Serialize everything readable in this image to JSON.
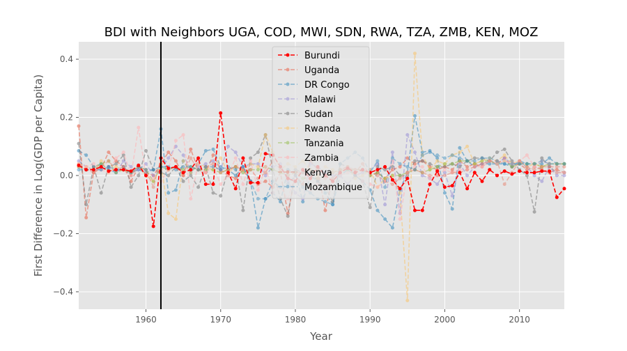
{
  "chart_data": {
    "type": "line",
    "title": "BDI with Neighbors UGA, COD, MWI, SDN, RWA, TZA, ZMB, KEN, MOZ",
    "xlabel": "Year",
    "ylabel": "First Difference in Log(GDP per Capita)",
    "xlim": [
      1951,
      2016
    ],
    "ylim": [
      -0.46,
      0.46
    ],
    "xticks": [
      1960,
      1970,
      1980,
      1990,
      2000,
      2010
    ],
    "yticks": [
      -0.4,
      -0.2,
      0.0,
      0.2,
      0.4
    ],
    "ytick_labels": [
      "−0.4",
      "−0.2",
      "0.0",
      "0.2",
      "0.4"
    ],
    "grid": true,
    "background": "#e5e5e5",
    "legend_position": "top-center",
    "vline": {
      "x": 1962,
      "color": "#000000"
    },
    "series": [
      {
        "name": "Burundi",
        "color": "#ff0000",
        "alpha": 1.0,
        "start": 1951,
        "values": [
          0.035,
          0.02,
          0.02,
          0.03,
          0.015,
          0.02,
          0.02,
          0.015,
          0.035,
          0.0,
          -0.175,
          0.06,
          0.025,
          0.03,
          0.01,
          0.02,
          0.06,
          -0.03,
          -0.03,
          0.215,
          0.01,
          -0.045,
          0.06,
          -0.025,
          -0.025,
          0.075,
          0.07,
          0.03,
          -0.01,
          -0.02,
          0.02,
          -0.01,
          0.03,
          0.0,
          -0.02,
          0.01,
          0.025,
          0.01,
          0.02,
          0.01,
          0.02,
          0.03,
          -0.015,
          -0.045,
          -0.01,
          -0.12,
          -0.12,
          -0.03,
          0.015,
          -0.04,
          -0.035,
          0.01,
          -0.045,
          0.01,
          -0.02,
          0.02,
          0.0,
          0.015,
          0.005,
          0.015,
          0.01,
          0.01,
          0.015,
          0.015,
          -0.075,
          -0.045
        ]
      },
      {
        "name": "Uganda",
        "color": "#e8826f",
        "alpha": 0.75,
        "start": 1951,
        "values": [
          0.17,
          -0.145,
          0.01,
          0.025,
          0.08,
          0.05,
          0.03,
          -0.02,
          0.03,
          0.01,
          0.0,
          0.04,
          0.08,
          0.05,
          0.0,
          0.09,
          0.02,
          0.01,
          0.07,
          0.02,
          0.0,
          -0.01,
          0.02,
          -0.02,
          -0.03,
          -0.02,
          -0.04,
          0.01,
          -0.13,
          0.0,
          -0.03,
          0.05,
          0.02,
          -0.12,
          -0.01,
          0.02,
          0.03,
          0.01,
          0.04,
          0.0,
          0.01,
          -0.01,
          0.02,
          0.03,
          0.06,
          0.04,
          0.05,
          0.03,
          0.02,
          0.03,
          0.02,
          0.05,
          0.03,
          0.04,
          0.03,
          0.05,
          0.04,
          0.06,
          0.03,
          0.04,
          0.02,
          0.03,
          0.02,
          0.01,
          0.02,
          0.01
        ]
      },
      {
        "name": "DR Congo",
        "color": "#348abd",
        "alpha": 0.55,
        "start": 1951,
        "values": [
          0.085,
          0.07,
          0.03,
          0.04,
          0.02,
          0.01,
          0.03,
          0.01,
          0.02,
          0.01,
          0.02,
          0.16,
          -0.06,
          -0.05,
          0.05,
          0.01,
          0.04,
          0.085,
          0.09,
          0.03,
          0.02,
          0.0,
          0.03,
          -0.02,
          -0.18,
          -0.08,
          -0.06,
          -0.09,
          0.02,
          0.01,
          -0.09,
          0.0,
          -0.02,
          -0.06,
          -0.1,
          0.0,
          0.02,
          0.0,
          -0.02,
          -0.05,
          -0.12,
          -0.15,
          -0.18,
          -0.05,
          0.01,
          0.205,
          0.08,
          0.085,
          0.06,
          -0.06,
          -0.115,
          0.095,
          0.05,
          0.03,
          0.04,
          0.04,
          0.04,
          0.04,
          0.03,
          0.05,
          0.04,
          0.04,
          0.04,
          0.06,
          0.04,
          0.04
        ]
      },
      {
        "name": "Malawi",
        "color": "#988ed5",
        "alpha": 0.55,
        "start": 1951,
        "values": [
          0.05,
          0.03,
          0.02,
          0.02,
          0.03,
          0.01,
          0.05,
          0.03,
          0.02,
          0.04,
          0.0,
          0.02,
          0.06,
          0.1,
          0.07,
          0.02,
          0.03,
          0.04,
          0.05,
          0.02,
          0.1,
          0.08,
          0.03,
          0.04,
          0.04,
          0.0,
          0.03,
          0.04,
          -0.02,
          -0.06,
          -0.08,
          0.04,
          0.03,
          0.01,
          0.0,
          0.0,
          -0.03,
          0.0,
          0.01,
          0.02,
          0.04,
          -0.1,
          0.08,
          -0.13,
          0.14,
          0.08,
          0.0,
          -0.01,
          -0.03,
          0.01,
          -0.07,
          0.04,
          0.0,
          0.03,
          0.04,
          0.05,
          0.04,
          0.06,
          0.04,
          0.04,
          0.03,
          0.0,
          -0.02,
          0.03,
          0.0,
          0.0
        ]
      },
      {
        "name": "Sudan",
        "color": "#777777",
        "alpha": 0.55,
        "start": 1951,
        "values": [
          0.11,
          -0.1,
          0.03,
          -0.06,
          0.03,
          0.04,
          0.07,
          -0.04,
          0.0,
          0.085,
          0.02,
          0.01,
          0.0,
          0.03,
          -0.02,
          0.0,
          -0.04,
          0.03,
          -0.06,
          -0.07,
          0.02,
          0.03,
          -0.12,
          0.06,
          0.08,
          0.14,
          0.02,
          -0.08,
          -0.14,
          0.02,
          0.01,
          0.02,
          -0.02,
          -0.04,
          -0.09,
          0.04,
          0.03,
          0.0,
          -0.02,
          -0.11,
          0.03,
          0.02,
          0.03,
          0.0,
          0.0,
          0.05,
          0.05,
          0.04,
          0.03,
          0.03,
          0.04,
          0.03,
          0.05,
          0.06,
          0.06,
          0.05,
          0.08,
          0.09,
          0.05,
          0.02,
          0.0,
          -0.125,
          0.06,
          0.03,
          0.01,
          0.01
        ]
      },
      {
        "name": "Rwanda",
        "color": "#fbc15e",
        "alpha": 0.5,
        "start": 1951,
        "values": [
          0.04,
          0.03,
          0.02,
          0.05,
          0.01,
          0.03,
          0.02,
          0.01,
          0.03,
          0.0,
          -0.02,
          0.04,
          -0.13,
          -0.15,
          0.05,
          0.01,
          0.04,
          0.03,
          0.02,
          0.06,
          0.01,
          0.03,
          0.02,
          0.04,
          0.03,
          0.14,
          0.08,
          0.02,
          0.04,
          0.03,
          0.05,
          0.02,
          0.0,
          0.03,
          0.02,
          0.01,
          0.03,
          -0.01,
          0.0,
          0.02,
          -0.04,
          -0.01,
          0.0,
          -0.06,
          -0.43,
          0.42,
          0.07,
          0.02,
          0.05,
          0.04,
          0.07,
          0.08,
          0.1,
          0.04,
          0.05,
          0.06,
          0.05,
          0.07,
          0.04,
          0.05,
          0.03,
          0.04,
          0.03,
          0.04,
          0.04,
          0.04
        ]
      },
      {
        "name": "Tanzania",
        "color": "#8eba42",
        "alpha": 0.5,
        "start": 1951,
        "values": [
          0.03,
          0.02,
          0.02,
          0.04,
          0.05,
          0.01,
          0.02,
          0.01,
          0.03,
          0.02,
          -0.02,
          0.03,
          0.02,
          0.03,
          0.02,
          0.03,
          0.02,
          0.02,
          0.02,
          0.01,
          0.02,
          0.03,
          0.01,
          0.02,
          0.02,
          0.03,
          0.02,
          0.01,
          0.0,
          0.01,
          -0.01,
          -0.01,
          -0.01,
          0.0,
          0.01,
          0.02,
          0.02,
          0.02,
          0.02,
          0.0,
          0.01,
          -0.01,
          0.0,
          0.0,
          0.01,
          0.02,
          0.01,
          0.02,
          0.03,
          0.04,
          0.04,
          0.05,
          0.05,
          0.04,
          0.05,
          0.05,
          0.04,
          0.05,
          0.03,
          0.04,
          0.04,
          0.04,
          0.03,
          0.04,
          0.04,
          0.04
        ]
      },
      {
        "name": "Zambia",
        "color": "#ffb5b8",
        "alpha": 0.6,
        "start": 1951,
        "values": [
          0.04,
          0.03,
          0.04,
          0.02,
          0.01,
          0.06,
          0.08,
          0.0,
          0.165,
          0.0,
          -0.01,
          -0.02,
          0.02,
          0.12,
          0.14,
          -0.08,
          0.04,
          0.01,
          0.03,
          -0.03,
          0.0,
          0.06,
          -0.03,
          0.05,
          -0.05,
          0.03,
          -0.06,
          -0.04,
          -0.08,
          0.0,
          0.02,
          -0.05,
          -0.03,
          -0.04,
          -0.02,
          0.0,
          0.01,
          0.02,
          -0.02,
          -0.03,
          -0.04,
          -0.02,
          0.05,
          -0.15,
          0.01,
          0.03,
          0.03,
          -0.01,
          0.0,
          0.02,
          0.01,
          0.02,
          0.02,
          0.03,
          0.03,
          0.05,
          0.04,
          0.05,
          0.04,
          0.05,
          0.07,
          0.03,
          0.05,
          0.04,
          0.01,
          0.01
        ]
      },
      {
        "name": "Kenya",
        "color": "#e8826f",
        "alpha": 0.5,
        "start": 1951,
        "values": [
          0.03,
          0.02,
          0.01,
          0.03,
          0.05,
          0.02,
          0.03,
          0.0,
          0.03,
          0.02,
          -0.04,
          0.06,
          0.02,
          0.03,
          0.0,
          0.06,
          0.02,
          0.03,
          0.04,
          0.01,
          0.02,
          0.03,
          0.02,
          0.02,
          -0.01,
          0.01,
          0.05,
          0.02,
          0.0,
          0.01,
          0.01,
          0.0,
          -0.01,
          -0.01,
          0.01,
          0.02,
          0.03,
          0.02,
          0.02,
          0.01,
          0.0,
          -0.02,
          -0.03,
          -0.01,
          0.01,
          0.02,
          0.01,
          0.0,
          0.0,
          0.0,
          0.01,
          0.01,
          0.02,
          0.03,
          0.04,
          0.05,
          0.05,
          -0.03,
          0.01,
          0.05,
          0.03,
          0.02,
          0.03,
          0.03,
          0.03,
          0.03
        ]
      },
      {
        "name": "Mozambique",
        "color": "#348abd",
        "alpha": 0.45,
        "start": 1951,
        "values": [
          0.02,
          0.02,
          0.02,
          0.02,
          0.03,
          0.02,
          0.02,
          0.01,
          0.03,
          0.02,
          0.02,
          0.03,
          0.03,
          0.02,
          0.03,
          0.03,
          0.02,
          0.03,
          0.03,
          0.02,
          0.03,
          0.02,
          0.03,
          -0.02,
          -0.08,
          -0.08,
          -0.02,
          -0.04,
          -0.03,
          0.0,
          -0.04,
          -0.06,
          -0.08,
          -0.09,
          -0.1,
          0.04,
          0.06,
          0.08,
          0.06,
          0.01,
          0.05,
          -0.04,
          0.06,
          0.04,
          0.03,
          0.02,
          0.07,
          0.08,
          0.07,
          0.06,
          0.07,
          0.06,
          0.05,
          0.05,
          0.06,
          0.06,
          0.05,
          0.04,
          0.04,
          0.04,
          0.04,
          0.04,
          0.05,
          0.04,
          0.04,
          0.04
        ]
      }
    ]
  }
}
